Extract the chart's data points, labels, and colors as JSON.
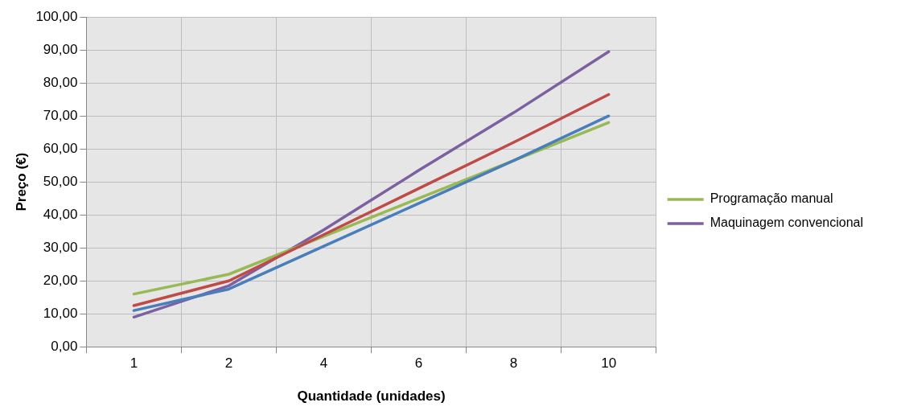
{
  "chart_data": {
    "type": "line",
    "xlabel": "Quantidade (unidades)",
    "ylabel": "Preço (€)",
    "categories": [
      "1",
      "2",
      "4",
      "6",
      "8",
      "10"
    ],
    "series": [
      {
        "color": "#4a7ebb",
        "values": [
          11,
          17.5,
          30.5,
          43.5,
          56.5,
          70
        ]
      },
      {
        "color": "#be4b48",
        "values": [
          12.5,
          20,
          34,
          48,
          62,
          76.5
        ]
      },
      {
        "name": "Programação manual",
        "color": "#98b954",
        "values": [
          16,
          22,
          33.5,
          45,
          56.5,
          68
        ]
      },
      {
        "name": "Maquinagem convencional",
        "color": "#7d60a0",
        "values": [
          9,
          18.5,
          35.5,
          53.5,
          71,
          89.5
        ]
      }
    ],
    "ylim": [
      0,
      100
    ],
    "yticks": [
      {
        "value": 0,
        "label": "0,00"
      },
      {
        "value": 10,
        "label": "10,00"
      },
      {
        "value": 20,
        "label": "20,00"
      },
      {
        "value": 30,
        "label": "30,00"
      },
      {
        "value": 40,
        "label": "40,00"
      },
      {
        "value": 50,
        "label": "50,00"
      },
      {
        "value": 60,
        "label": "60,00"
      },
      {
        "value": 70,
        "label": "70,00"
      },
      {
        "value": 80,
        "label": "80,00"
      },
      {
        "value": 90,
        "label": "90,00"
      },
      {
        "value": 100,
        "label": "100,00"
      }
    ],
    "grid": true,
    "legend": "right",
    "marker": "none",
    "line_style": "solid"
  }
}
